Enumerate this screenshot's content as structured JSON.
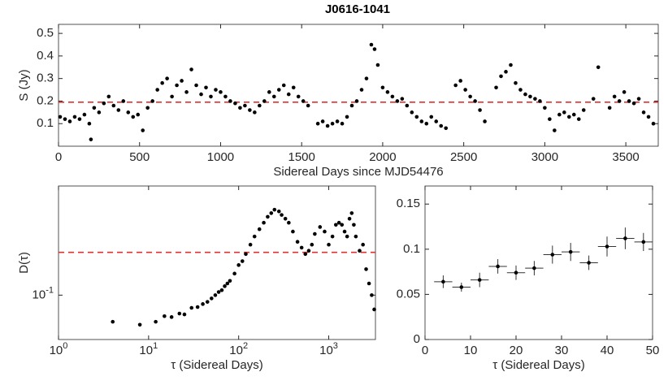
{
  "chart_data": [
    {
      "type": "scatter",
      "title": "J0616-1041",
      "xlabel": "Sidereal Days since MJD54476",
      "ylabel": "S (Jy)",
      "xlim": [
        0,
        3700
      ],
      "ylim": [
        0,
        0.54
      ],
      "xticks": [
        0,
        500,
        1000,
        1500,
        2000,
        2500,
        3000,
        3500
      ],
      "yticks": [
        0.1,
        0.2,
        0.3,
        0.4,
        0.5
      ],
      "color": "#000000",
      "hline": {
        "value": 0.195,
        "color": "#e03030"
      },
      "x": [
        10,
        40,
        70,
        100,
        130,
        160,
        190,
        200,
        220,
        250,
        280,
        310,
        340,
        370,
        400,
        430,
        460,
        490,
        520,
        550,
        580,
        610,
        640,
        670,
        700,
        730,
        760,
        790,
        820,
        850,
        880,
        910,
        940,
        970,
        1000,
        1030,
        1060,
        1090,
        1120,
        1150,
        1180,
        1210,
        1240,
        1270,
        1300,
        1330,
        1360,
        1390,
        1420,
        1450,
        1480,
        1510,
        1540,
        1600,
        1630,
        1660,
        1690,
        1720,
        1750,
        1780,
        1810,
        1840,
        1870,
        1900,
        1930,
        1950,
        1970,
        2000,
        2030,
        2060,
        2090,
        2120,
        2150,
        2180,
        2210,
        2240,
        2270,
        2300,
        2330,
        2360,
        2390,
        2450,
        2480,
        2510,
        2540,
        2570,
        2600,
        2630,
        2700,
        2730,
        2760,
        2790,
        2820,
        2850,
        2880,
        2910,
        2940,
        2970,
        3000,
        3030,
        3060,
        3090,
        3120,
        3150,
        3180,
        3210,
        3240,
        3300,
        3330,
        3400,
        3430,
        3460,
        3490,
        3520,
        3550,
        3580,
        3610,
        3640,
        3670
      ],
      "values": [
        0.13,
        0.12,
        0.11,
        0.13,
        0.12,
        0.14,
        0.1,
        0.03,
        0.17,
        0.15,
        0.19,
        0.22,
        0.18,
        0.16,
        0.2,
        0.15,
        0.13,
        0.14,
        0.07,
        0.17,
        0.2,
        0.25,
        0.28,
        0.3,
        0.22,
        0.27,
        0.29,
        0.24,
        0.34,
        0.27,
        0.23,
        0.26,
        0.22,
        0.25,
        0.24,
        0.22,
        0.2,
        0.19,
        0.17,
        0.18,
        0.16,
        0.15,
        0.18,
        0.2,
        0.24,
        0.22,
        0.25,
        0.27,
        0.23,
        0.26,
        0.22,
        0.2,
        0.18,
        0.1,
        0.11,
        0.09,
        0.1,
        0.11,
        0.1,
        0.13,
        0.18,
        0.2,
        0.25,
        0.3,
        0.45,
        0.43,
        0.36,
        0.26,
        0.24,
        0.22,
        0.2,
        0.21,
        0.18,
        0.15,
        0.13,
        0.11,
        0.1,
        0.13,
        0.11,
        0.09,
        0.08,
        0.27,
        0.29,
        0.25,
        0.22,
        0.2,
        0.16,
        0.11,
        0.26,
        0.31,
        0.33,
        0.36,
        0.28,
        0.25,
        0.23,
        0.22,
        0.21,
        0.2,
        0.17,
        0.12,
        0.07,
        0.14,
        0.15,
        0.13,
        0.14,
        0.12,
        0.16,
        0.21,
        0.35,
        0.17,
        0.22,
        0.2,
        0.24,
        0.2,
        0.19,
        0.21,
        0.15,
        0.13,
        0.1
      ]
    },
    {
      "type": "scatter",
      "xlabel": "τ (Sidereal Days)",
      "ylabel": "D(τ)",
      "xlog": true,
      "ylog": true,
      "xlim": [
        1,
        3300
      ],
      "ylim": [
        0.05,
        0.55
      ],
      "xticks": [
        {
          "value": 1,
          "label": "10^0"
        },
        {
          "value": 10,
          "label": "10^1"
        },
        {
          "value": 100,
          "label": "10^2"
        },
        {
          "value": 1000,
          "label": "10^3"
        }
      ],
      "yticks": [
        {
          "value": 0.1,
          "label": "10^-1"
        }
      ],
      "color": "#000000",
      "hline": {
        "value": 0.195,
        "color": "#e03030"
      },
      "x": [
        4,
        8,
        12,
        15,
        18,
        22,
        25,
        30,
        35,
        40,
        45,
        50,
        55,
        60,
        65,
        70,
        75,
        80,
        90,
        100,
        110,
        120,
        135,
        150,
        170,
        190,
        210,
        230,
        250,
        280,
        300,
        330,
        360,
        400,
        450,
        500,
        550,
        600,
        650,
        700,
        800,
        900,
        1000,
        1100,
        1200,
        1300,
        1400,
        1500,
        1600,
        1700,
        1800,
        1900,
        2000,
        2200,
        2400,
        2600,
        2800,
        3000,
        3200
      ],
      "values": [
        0.066,
        0.063,
        0.066,
        0.072,
        0.071,
        0.075,
        0.074,
        0.082,
        0.083,
        0.087,
        0.09,
        0.095,
        0.1,
        0.105,
        0.108,
        0.115,
        0.12,
        0.125,
        0.14,
        0.16,
        0.17,
        0.19,
        0.22,
        0.25,
        0.28,
        0.31,
        0.34,
        0.36,
        0.38,
        0.37,
        0.35,
        0.33,
        0.31,
        0.27,
        0.23,
        0.21,
        0.19,
        0.2,
        0.22,
        0.26,
        0.29,
        0.27,
        0.22,
        0.25,
        0.3,
        0.31,
        0.3,
        0.27,
        0.25,
        0.33,
        0.36,
        0.3,
        0.25,
        0.2,
        0.22,
        0.15,
        0.12,
        0.1,
        0.08
      ]
    },
    {
      "type": "scatter",
      "xlabel": "τ (Sidereal Days)",
      "xlim": [
        0,
        50
      ],
      "ylim": [
        0,
        0.17
      ],
      "xticks": [
        0,
        10,
        20,
        30,
        40,
        50
      ],
      "yticks": [
        0,
        0.05,
        0.1,
        0.15
      ],
      "color": "#000000",
      "x": [
        4,
        8,
        12,
        16,
        20,
        24,
        28,
        32,
        36,
        40,
        44,
        48
      ],
      "values": [
        0.064,
        0.058,
        0.066,
        0.081,
        0.074,
        0.079,
        0.094,
        0.097,
        0.085,
        0.103,
        0.112,
        0.108
      ],
      "yerr": [
        0.007,
        0.005,
        0.008,
        0.008,
        0.008,
        0.008,
        0.01,
        0.01,
        0.008,
        0.011,
        0.012,
        0.01
      ],
      "xerr": [
        2,
        2,
        2,
        2,
        2,
        2,
        2,
        2,
        2,
        2,
        2,
        2
      ]
    }
  ]
}
